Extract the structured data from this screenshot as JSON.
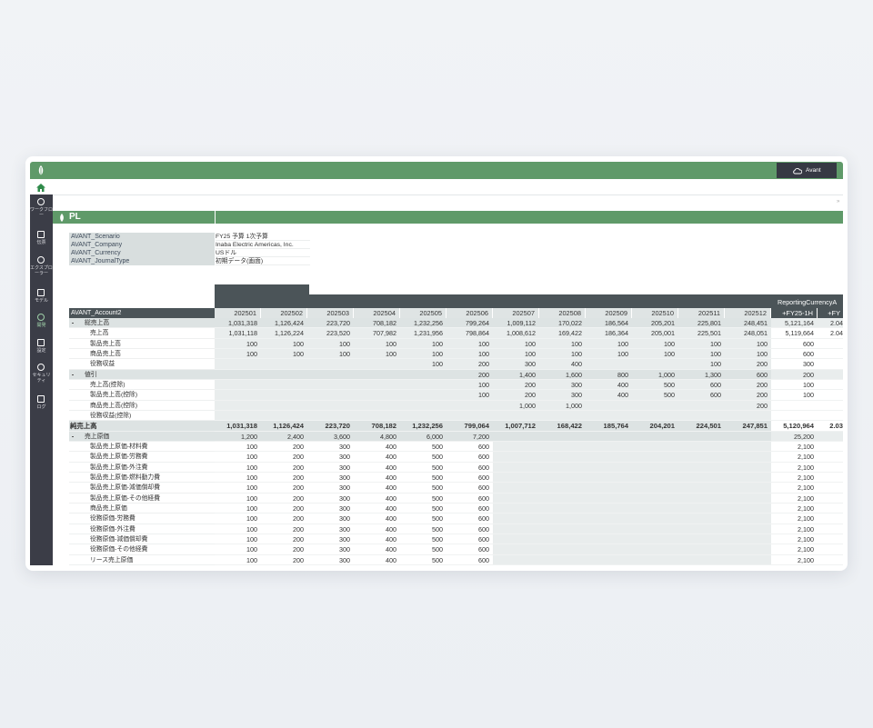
{
  "topbar": {
    "user": "Avant"
  },
  "nav": {
    "items": [
      "ワークフロー",
      "伝票",
      "エクスプローラー",
      "モデル",
      "開発",
      "設定",
      "セキュリティ",
      "ログ"
    ]
  },
  "page": {
    "title": "PL"
  },
  "parameters": [
    {
      "name": "AVANT_Scenario",
      "value": "FY25 予算 1次予算"
    },
    {
      "name": "AVANT_Company",
      "value": "Inaba Electric Americas, Inc."
    },
    {
      "name": "AVANT_Currency",
      "value": "USドル"
    },
    {
      "name": "AVANT_JournalType",
      "value": "初期データ(画面)"
    }
  ],
  "table": {
    "group_header": "ReportingCurrencyA",
    "row_header": "AVANT_Account2",
    "columns": [
      "202501",
      "202502",
      "202503",
      "202504",
      "202505",
      "202506",
      "202507",
      "202508",
      "202509",
      "202510",
      "202511",
      "202512",
      "+FY25-1H",
      "+FY"
    ],
    "rows": [
      {
        "label": "総売上高",
        "values": [
          "1,031,318",
          "1,126,424",
          "223,720",
          "708,182",
          "1,232,256",
          "799,264",
          "1,009,112",
          "170,022",
          "186,564",
          "205,201",
          "225,801",
          "248,451",
          "5,121,164",
          "2.04"
        ]
      },
      {
        "label": "売上高",
        "values": [
          "1,031,118",
          "1,126,224",
          "223,520",
          "707,982",
          "1,231,956",
          "798,864",
          "1,008,612",
          "169,422",
          "186,364",
          "205,001",
          "225,501",
          "248,051",
          "5,119,664",
          "2.04"
        ]
      },
      {
        "label": "製品売上高",
        "values": [
          "100",
          "100",
          "100",
          "100",
          "100",
          "100",
          "100",
          "100",
          "100",
          "100",
          "100",
          "100",
          "600",
          null
        ]
      },
      {
        "label": "商品売上高",
        "values": [
          "100",
          "100",
          "100",
          "100",
          "100",
          "100",
          "100",
          "100",
          "100",
          "100",
          "100",
          "100",
          "600",
          null
        ]
      },
      {
        "label": "役務収益",
        "values": [
          null,
          null,
          null,
          null,
          "100",
          "200",
          "300",
          "400",
          null,
          null,
          "100",
          "200",
          "300",
          null
        ]
      },
      {
        "label": "値引",
        "values": [
          null,
          null,
          null,
          null,
          null,
          "200",
          "1,400",
          "1,600",
          "800",
          "1,000",
          "1,300",
          "600",
          "200",
          null
        ]
      },
      {
        "label": "売上高(控除)",
        "values": [
          null,
          null,
          null,
          null,
          null,
          "100",
          "200",
          "300",
          "400",
          "500",
          "600",
          "200",
          "100",
          null
        ]
      },
      {
        "label": "製品売上高(控除)",
        "values": [
          null,
          null,
          null,
          null,
          null,
          "100",
          "200",
          "300",
          "400",
          "500",
          "600",
          "200",
          "100",
          null
        ]
      },
      {
        "label": "商品売上高(控除)",
        "values": [
          null,
          null,
          null,
          null,
          null,
          null,
          "1,000",
          "1,000",
          null,
          null,
          null,
          "200",
          null,
          null
        ]
      },
      {
        "label": "役務収益(控除)",
        "values": [
          null,
          null,
          null,
          null,
          null,
          null,
          null,
          null,
          null,
          null,
          null,
          null,
          null,
          null
        ]
      },
      {
        "label": "純売上高",
        "values": [
          "1,031,318",
          "1,126,424",
          "223,720",
          "708,182",
          "1,232,256",
          "799,064",
          "1,007,712",
          "168,422",
          "185,764",
          "204,201",
          "224,501",
          "247,851",
          "5,120,964",
          "2.03"
        ]
      },
      {
        "label": "売上原価",
        "values": [
          "1,200",
          "2,400",
          "3,600",
          "4,800",
          "6,000",
          "7,200",
          null,
          null,
          null,
          null,
          null,
          null,
          "25,200",
          null
        ]
      },
      {
        "label": "製品売上原価-材料費",
        "values": [
          "100",
          "200",
          "300",
          "400",
          "500",
          "600",
          null,
          null,
          null,
          null,
          null,
          null,
          "2,100",
          null
        ]
      },
      {
        "label": "製品売上原価-労務費",
        "values": [
          "100",
          "200",
          "300",
          "400",
          "500",
          "600",
          null,
          null,
          null,
          null,
          null,
          null,
          "2,100",
          null
        ]
      },
      {
        "label": "製品売上原価-外注費",
        "values": [
          "100",
          "200",
          "300",
          "400",
          "500",
          "600",
          null,
          null,
          null,
          null,
          null,
          null,
          "2,100",
          null
        ]
      },
      {
        "label": "製品売上原価-燃料動力費",
        "values": [
          "100",
          "200",
          "300",
          "400",
          "500",
          "600",
          null,
          null,
          null,
          null,
          null,
          null,
          "2,100",
          null
        ]
      },
      {
        "label": "製品売上原価-減価償却費",
        "values": [
          "100",
          "200",
          "300",
          "400",
          "500",
          "600",
          null,
          null,
          null,
          null,
          null,
          null,
          "2,100",
          null
        ]
      },
      {
        "label": "製品売上原価-その他経費",
        "values": [
          "100",
          "200",
          "300",
          "400",
          "500",
          "600",
          null,
          null,
          null,
          null,
          null,
          null,
          "2,100",
          null
        ]
      },
      {
        "label": "商品売上原価",
        "values": [
          "100",
          "200",
          "300",
          "400",
          "500",
          "600",
          null,
          null,
          null,
          null,
          null,
          null,
          "2,100",
          null
        ]
      },
      {
        "label": "役務原価-労務費",
        "values": [
          "100",
          "200",
          "300",
          "400",
          "500",
          "600",
          null,
          null,
          null,
          null,
          null,
          null,
          "2,100",
          null
        ]
      },
      {
        "label": "役務原価-外注費",
        "values": [
          "100",
          "200",
          "300",
          "400",
          "500",
          "600",
          null,
          null,
          null,
          null,
          null,
          null,
          "2,100",
          null
        ]
      },
      {
        "label": "役務原価-減価償却費",
        "values": [
          "100",
          "200",
          "300",
          "400",
          "500",
          "600",
          null,
          null,
          null,
          null,
          null,
          null,
          "2,100",
          null
        ]
      },
      {
        "label": "役務原価-その他経費",
        "values": [
          "100",
          "200",
          "300",
          "400",
          "500",
          "600",
          null,
          null,
          null,
          null,
          null,
          null,
          "2,100",
          null
        ]
      },
      {
        "label": "リース売上原価",
        "values": [
          "100",
          "200",
          "300",
          "400",
          "500",
          "600",
          null,
          null,
          null,
          null,
          null,
          null,
          "2,100",
          null
        ]
      }
    ]
  }
}
